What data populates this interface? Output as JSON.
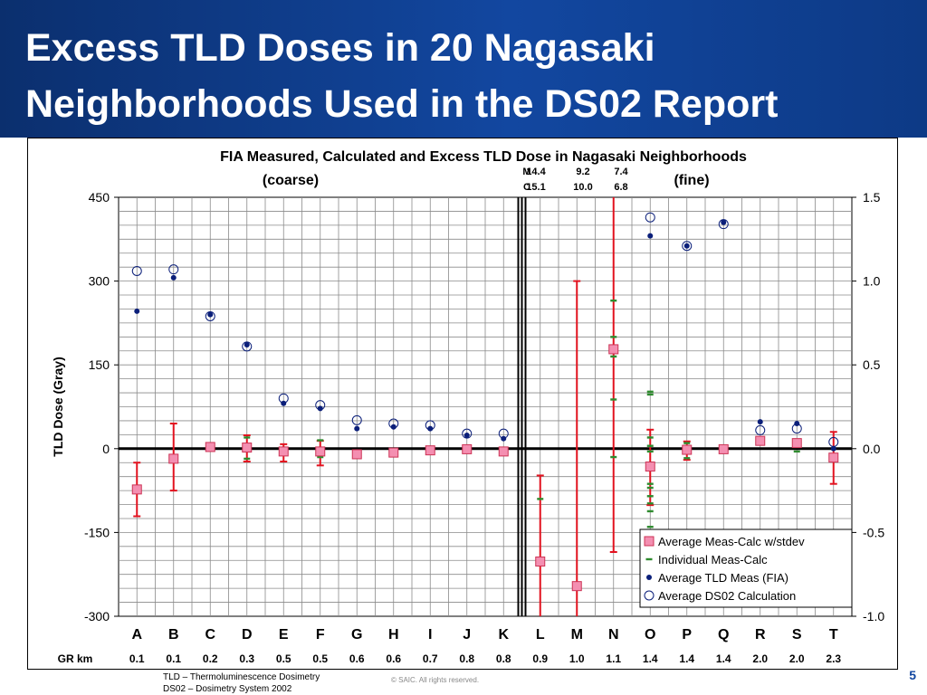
{
  "slide": {
    "title_line1": "Excess TLD Doses in 20 Nagasaki",
    "title_line2": "Neighborhoods Used in the DS02 Report",
    "footnote_line1": "TLD – Thermoluminescence Dosimetry",
    "footnote_line2": "DS02 – Dosimetry System 2002",
    "copyright": "© SAIC. All rights reserved.",
    "page_number": "5"
  },
  "chart_data": {
    "type": "scatter",
    "title": "FIA Measured, Calculated and Excess TLD Dose in Nagasaki Neighborhoods",
    "section_left": "(coarse)",
    "section_right": "(fine)",
    "ylabel": "TLD Dose (Gray)",
    "ylim": [
      -300,
      450
    ],
    "y_ticks": [
      "450",
      "300",
      "150",
      "0",
      "-150",
      "-300"
    ],
    "y2lim": [
      -1.0,
      1.5
    ],
    "y2_ticks": [
      "1.5",
      "1.0",
      "0.5",
      "0.0",
      "-0.5",
      "-1.0"
    ],
    "categories": [
      "A",
      "B",
      "C",
      "D",
      "E",
      "F",
      "G",
      "H",
      "I",
      "J",
      "K",
      "L",
      "M",
      "N",
      "O",
      "P",
      "Q",
      "R",
      "S",
      "T"
    ],
    "gr_label": "GR km",
    "gr_km": [
      "0.1",
      "0.1",
      "0.2",
      "0.3",
      "0.5",
      "0.5",
      "0.6",
      "0.6",
      "0.7",
      "0.8",
      "0.8",
      "0.9",
      "1.0",
      "1.1",
      "1.4",
      "1.4",
      "1.4",
      "2.0",
      "2.0",
      "2.3"
    ],
    "divider_after": "K",
    "annotation_rows": [
      {
        "label": "M",
        "values": [
          "14.4",
          "9.2",
          "7.4"
        ]
      },
      {
        "label": "C",
        "values": [
          "15.1",
          "10.0",
          "6.8"
        ]
      }
    ],
    "legend": [
      "Average Meas-Calc w/stdev",
      "Individual Meas-Calc",
      "Average TLD Meas (FIA)",
      "Average DS02 Calculation"
    ],
    "colors": {
      "excess": "#f48fb1",
      "excess_border": "#cc3355",
      "errorbar": "#e2121f",
      "individual": "#2e8b2e",
      "meas": "#0b1f7a",
      "calc": "#0b1f7a",
      "zero_line": "#000000",
      "grid": "#8a8a8a"
    },
    "series": [
      {
        "name": "Average Meas-Calc",
        "axis": "left",
        "values": [
          -73,
          -18,
          3,
          2,
          -5,
          -5,
          -10,
          -7,
          -3,
          -1,
          -5,
          -202,
          -246,
          178,
          -32,
          -2,
          -1,
          14,
          10,
          -16
        ]
      },
      {
        "name": "stdev_low",
        "axis": "left",
        "values": [
          -121,
          -75,
          null,
          -23,
          -23,
          -30,
          null,
          null,
          null,
          null,
          null,
          -303,
          -303,
          -185,
          -101,
          -20,
          null,
          null,
          null,
          -63
        ]
      },
      {
        "name": "stdev_high",
        "axis": "left",
        "values": [
          -25,
          45,
          null,
          24,
          8,
          14,
          null,
          null,
          null,
          null,
          null,
          -48,
          300,
          500,
          34,
          13,
          null,
          null,
          null,
          30
        ]
      },
      {
        "name": "Individual Meas-Calc",
        "axis": "left",
        "values": [
          [],
          [],
          [],
          [
            20,
            -18
          ],
          [
            0,
            -10
          ],
          [
            15,
            -15
          ],
          [
            -5
          ],
          [],
          [
            -3
          ],
          [],
          [],
          [
            -90
          ],
          [],
          [
            -15,
            88,
            165,
            200,
            265
          ],
          [
            -140,
            -112,
            -98,
            -85,
            -70,
            -63,
            -25,
            -5,
            5,
            20,
            97,
            102
          ],
          [
            10,
            -17
          ],
          [],
          [],
          [
            15,
            -5
          ],
          []
        ]
      },
      {
        "name": "Average TLD Meas (FIA)",
        "axis": "right",
        "values": [
          0.82,
          1.02,
          0.8,
          0.62,
          0.27,
          0.24,
          0.12,
          0.13,
          0.12,
          0.08,
          0.06,
          null,
          null,
          null,
          1.27,
          1.21,
          1.35,
          0.16,
          0.15,
          0.0
        ]
      },
      {
        "name": "Average DS02 Calculation",
        "axis": "right",
        "values": [
          1.06,
          1.07,
          0.79,
          0.61,
          0.3,
          0.26,
          0.17,
          0.15,
          0.14,
          0.09,
          0.09,
          null,
          null,
          null,
          1.38,
          1.21,
          1.34,
          0.11,
          0.12,
          0.04
        ]
      }
    ]
  }
}
